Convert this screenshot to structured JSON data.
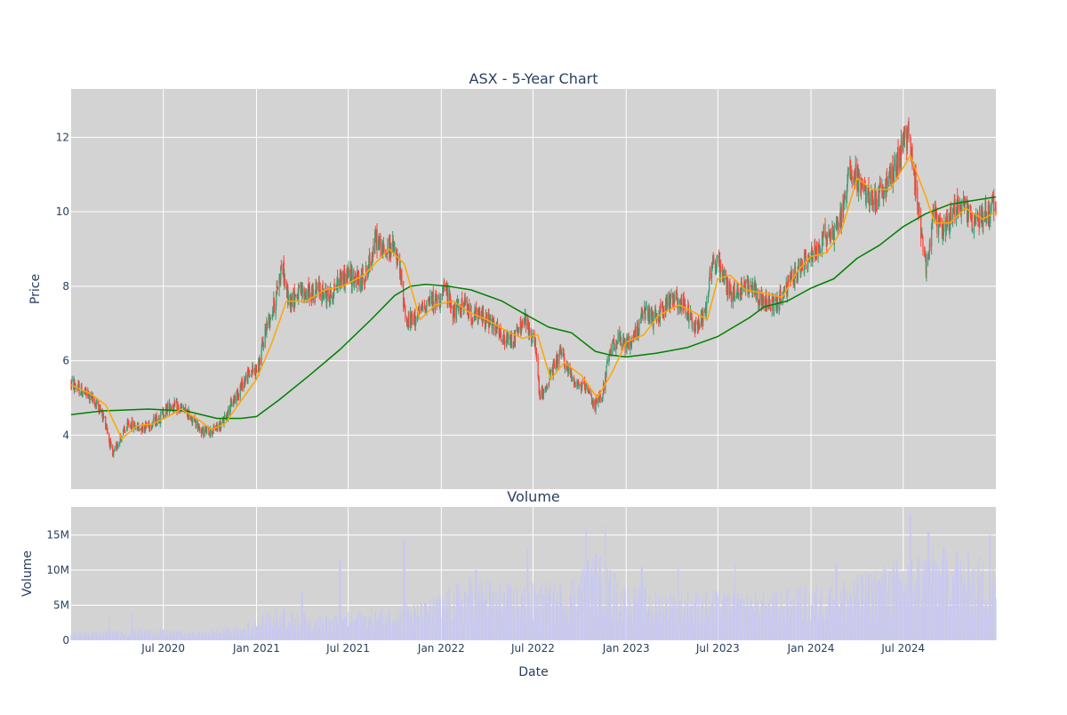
{
  "colors": {
    "increasing": "#3d9970",
    "decreasing": "#ff4136",
    "ma_short": "#ffa500",
    "ma_long": "#008000",
    "volume": "#c8c8f0",
    "plot_bg": "#d3d3d3",
    "grid": "#ffffff",
    "text": "#2a3f5f"
  },
  "chart_data": [
    {
      "type": "candlestick",
      "title": "ASX - 5-Year Chart",
      "xlabel": "",
      "ylabel": "Price",
      "xlim": [
        "2020-01-01",
        "2024-12-31"
      ],
      "ylim": [
        2.55,
        13.3
      ],
      "y_ticks": [
        4,
        6,
        8,
        10,
        12
      ],
      "grid": true,
      "x_grid_dates": [
        "2020-07-01",
        "2021-01-01",
        "2021-07-01",
        "2022-01-01",
        "2022-07-01",
        "2023-01-01",
        "2023-07-01",
        "2024-01-01",
        "2024-07-01"
      ],
      "price_path": [
        [
          "2020-01-01",
          5.4
        ],
        [
          "2020-01-20",
          5.2
        ],
        [
          "2020-02-10",
          5.0
        ],
        [
          "2020-02-25",
          4.75
        ],
        [
          "2020-03-10",
          4.3
        ],
        [
          "2020-03-23",
          3.4
        ],
        [
          "2020-04-05",
          3.9
        ],
        [
          "2020-04-25",
          4.3
        ],
        [
          "2020-05-15",
          4.2
        ],
        [
          "2020-06-05",
          4.3
        ],
        [
          "2020-06-25",
          4.5
        ],
        [
          "2020-07-15",
          4.8
        ],
        [
          "2020-08-05",
          4.7
        ],
        [
          "2020-08-25",
          4.5
        ],
        [
          "2020-09-15",
          4.1
        ],
        [
          "2020-10-05",
          4.1
        ],
        [
          "2020-10-25",
          4.3
        ],
        [
          "2020-11-15",
          4.9
        ],
        [
          "2020-12-05",
          5.4
        ],
        [
          "2020-12-20",
          5.7
        ],
        [
          "2021-01-05",
          5.8
        ],
        [
          "2021-01-20",
          6.9
        ],
        [
          "2021-02-05",
          7.5
        ],
        [
          "2021-02-20",
          8.6
        ],
        [
          "2021-03-05",
          7.6
        ],
        [
          "2021-03-25",
          7.8
        ],
        [
          "2021-04-15",
          7.8
        ],
        [
          "2021-05-05",
          7.9
        ],
        [
          "2021-05-25",
          7.7
        ],
        [
          "2021-06-15",
          8.2
        ],
        [
          "2021-07-05",
          8.3
        ],
        [
          "2021-07-25",
          8.1
        ],
        [
          "2021-08-10",
          8.5
        ],
        [
          "2021-08-25",
          9.3
        ],
        [
          "2021-09-10",
          8.9
        ],
        [
          "2021-09-25",
          9.1
        ],
        [
          "2021-10-10",
          8.5
        ],
        [
          "2021-10-25",
          7.0
        ],
        [
          "2021-11-15",
          7.2
        ],
        [
          "2021-12-05",
          7.6
        ],
        [
          "2021-12-25",
          7.6
        ],
        [
          "2022-01-10",
          7.9
        ],
        [
          "2022-01-25",
          7.3
        ],
        [
          "2022-02-15",
          7.5
        ],
        [
          "2022-03-05",
          7.2
        ],
        [
          "2022-03-25",
          7.2
        ],
        [
          "2022-04-15",
          6.9
        ],
        [
          "2022-05-05",
          6.5
        ],
        [
          "2022-05-25",
          6.6
        ],
        [
          "2022-06-15",
          7.1
        ],
        [
          "2022-07-05",
          6.4
        ],
        [
          "2022-07-15",
          5.0
        ],
        [
          "2022-08-05",
          5.6
        ],
        [
          "2022-08-25",
          6.2
        ],
        [
          "2022-09-10",
          5.7
        ],
        [
          "2022-09-25",
          5.4
        ],
        [
          "2022-10-15",
          5.2
        ],
        [
          "2022-10-30",
          4.8
        ],
        [
          "2022-11-15",
          5.1
        ],
        [
          "2022-11-25",
          5.9
        ],
        [
          "2022-12-10",
          6.6
        ],
        [
          "2022-12-30",
          6.4
        ],
        [
          "2023-01-15",
          6.6
        ],
        [
          "2023-02-05",
          7.3
        ],
        [
          "2023-02-25",
          7.1
        ],
        [
          "2023-03-15",
          7.4
        ],
        [
          "2023-04-05",
          7.7
        ],
        [
          "2023-04-25",
          7.5
        ],
        [
          "2023-05-15",
          6.9
        ],
        [
          "2023-06-05",
          7.3
        ],
        [
          "2023-06-20",
          8.7
        ],
        [
          "2023-07-10",
          8.4
        ],
        [
          "2023-07-25",
          7.8
        ],
        [
          "2023-08-15",
          7.9
        ],
        [
          "2023-09-05",
          8.1
        ],
        [
          "2023-09-25",
          7.6
        ],
        [
          "2023-10-15",
          7.5
        ],
        [
          "2023-11-05",
          7.7
        ],
        [
          "2023-11-25",
          8.2
        ],
        [
          "2023-12-15",
          8.6
        ],
        [
          "2024-01-05",
          8.8
        ],
        [
          "2024-01-25",
          9.3
        ],
        [
          "2024-02-15",
          9.5
        ],
        [
          "2024-03-05",
          10.0
        ],
        [
          "2024-03-15",
          11.2
        ],
        [
          "2024-04-05",
          10.8
        ],
        [
          "2024-04-25",
          10.3
        ],
        [
          "2024-05-15",
          10.4
        ],
        [
          "2024-06-05",
          10.9
        ],
        [
          "2024-06-25",
          11.6
        ],
        [
          "2024-07-10",
          12.1
        ],
        [
          "2024-07-20",
          11.2
        ],
        [
          "2024-08-05",
          9.6
        ],
        [
          "2024-08-15",
          8.6
        ],
        [
          "2024-08-30",
          9.9
        ],
        [
          "2024-09-15",
          9.5
        ],
        [
          "2024-10-05",
          9.9
        ],
        [
          "2024-10-25",
          10.3
        ],
        [
          "2024-11-15",
          9.7
        ],
        [
          "2024-12-05",
          9.9
        ],
        [
          "2024-12-31",
          10.2
        ]
      ],
      "ma_short_path": [
        [
          "2020-01-01",
          5.35
        ],
        [
          "2020-02-10",
          5.1
        ],
        [
          "2020-03-10",
          4.8
        ],
        [
          "2020-04-10",
          3.9
        ],
        [
          "2020-05-10",
          4.25
        ],
        [
          "2020-06-10",
          4.3
        ],
        [
          "2020-07-10",
          4.5
        ],
        [
          "2020-08-05",
          4.7
        ],
        [
          "2020-09-10",
          4.4
        ],
        [
          "2020-10-05",
          4.15
        ],
        [
          "2020-10-30",
          4.3
        ],
        [
          "2020-11-25",
          4.8
        ],
        [
          "2021-01-01",
          5.5
        ],
        [
          "2021-02-01",
          6.5
        ],
        [
          "2021-03-01",
          7.6
        ],
        [
          "2021-04-10",
          7.6
        ],
        [
          "2021-05-15",
          7.9
        ],
        [
          "2021-06-20",
          8.0
        ],
        [
          "2021-08-01",
          8.3
        ],
        [
          "2021-09-20",
          9.0
        ],
        [
          "2021-10-20",
          8.6
        ],
        [
          "2021-11-20",
          7.1
        ],
        [
          "2021-12-20",
          7.5
        ],
        [
          "2022-01-25",
          7.6
        ],
        [
          "2022-02-25",
          7.3
        ],
        [
          "2022-04-01",
          7.1
        ],
        [
          "2022-05-10",
          6.8
        ],
        [
          "2022-06-10",
          6.6
        ],
        [
          "2022-07-10",
          6.7
        ],
        [
          "2022-08-05",
          5.5
        ],
        [
          "2022-09-01",
          5.95
        ],
        [
          "2022-10-05",
          5.6
        ],
        [
          "2022-11-05",
          5.0
        ],
        [
          "2022-12-05",
          5.7
        ],
        [
          "2023-01-01",
          6.5
        ],
        [
          "2023-02-05",
          6.7
        ],
        [
          "2023-03-05",
          7.2
        ],
        [
          "2023-04-15",
          7.5
        ],
        [
          "2023-05-15",
          7.3
        ],
        [
          "2023-06-10",
          7.1
        ],
        [
          "2023-07-01",
          8.2
        ],
        [
          "2023-07-25",
          8.3
        ],
        [
          "2023-08-25",
          7.9
        ],
        [
          "2023-10-05",
          7.8
        ],
        [
          "2023-11-05",
          7.7
        ],
        [
          "2023-12-05",
          8.4
        ],
        [
          "2024-01-01",
          8.8
        ],
        [
          "2024-02-01",
          8.9
        ],
        [
          "2024-03-01",
          9.5
        ],
        [
          "2024-04-01",
          10.9
        ],
        [
          "2024-05-01",
          10.6
        ],
        [
          "2024-06-05",
          10.6
        ],
        [
          "2024-07-15",
          11.5
        ],
        [
          "2024-08-15",
          10.4
        ],
        [
          "2024-09-01",
          9.7
        ],
        [
          "2024-10-01",
          9.7
        ],
        [
          "2024-11-01",
          10.1
        ],
        [
          "2024-12-05",
          9.8
        ],
        [
          "2024-12-31",
          10.0
        ]
      ],
      "ma_long_path": [
        [
          "2020-01-01",
          4.55
        ],
        [
          "2020-03-01",
          4.65
        ],
        [
          "2020-06-01",
          4.7
        ],
        [
          "2020-08-15",
          4.65
        ],
        [
          "2020-10-15",
          4.45
        ],
        [
          "2020-12-01",
          4.45
        ],
        [
          "2021-01-01",
          4.5
        ],
        [
          "2021-02-15",
          4.95
        ],
        [
          "2021-04-15",
          5.6
        ],
        [
          "2021-06-15",
          6.3
        ],
        [
          "2021-08-15",
          7.1
        ],
        [
          "2021-10-01",
          7.75
        ],
        [
          "2021-11-01",
          8.0
        ],
        [
          "2021-12-01",
          8.05
        ],
        [
          "2022-01-15",
          8.0
        ],
        [
          "2022-03-01",
          7.9
        ],
        [
          "2022-05-01",
          7.6
        ],
        [
          "2022-06-15",
          7.25
        ],
        [
          "2022-08-01",
          6.9
        ],
        [
          "2022-09-15",
          6.75
        ],
        [
          "2022-11-01",
          6.25
        ],
        [
          "2022-12-01",
          6.15
        ],
        [
          "2023-01-01",
          6.1
        ],
        [
          "2023-03-01",
          6.2
        ],
        [
          "2023-05-01",
          6.35
        ],
        [
          "2023-07-01",
          6.65
        ],
        [
          "2023-09-01",
          7.15
        ],
        [
          "2023-10-01",
          7.45
        ],
        [
          "2023-11-15",
          7.6
        ],
        [
          "2024-01-01",
          7.95
        ],
        [
          "2024-02-15",
          8.2
        ],
        [
          "2024-04-01",
          8.75
        ],
        [
          "2024-05-15",
          9.1
        ],
        [
          "2024-07-01",
          9.6
        ],
        [
          "2024-08-15",
          9.95
        ],
        [
          "2024-10-01",
          10.2
        ],
        [
          "2024-11-15",
          10.3
        ],
        [
          "2024-12-31",
          10.4
        ]
      ]
    },
    {
      "type": "bar",
      "title": "Volume",
      "xlabel": "Date",
      "ylabel": "Volume",
      "xlim": [
        "2020-01-01",
        "2024-12-31"
      ],
      "ylim": [
        0,
        19000000
      ],
      "y_ticks": [
        0,
        5000000,
        10000000,
        15000000
      ],
      "y_tick_labels": [
        "0",
        "5M",
        "10M",
        "15M"
      ],
      "x_ticks": [
        "2020-07-01",
        "2021-01-01",
        "2021-07-01",
        "2022-01-01",
        "2022-07-01",
        "2023-01-01",
        "2023-07-01",
        "2024-01-01",
        "2024-07-01"
      ],
      "x_tick_labels": [
        "Jul 2020",
        "Jan 2021",
        "Jul 2021",
        "Jan 2022",
        "Jul 2022",
        "Jan 2023",
        "Jul 2023",
        "Jan 2024",
        "Jul 2024"
      ],
      "grid": true,
      "volume_baseline": [
        [
          "2020-01-01",
          800000
        ],
        [
          "2020-06-01",
          1200000
        ],
        [
          "2020-09-01",
          900000
        ],
        [
          "2020-12-01",
          1400000
        ],
        [
          "2021-02-01",
          3200000
        ],
        [
          "2021-05-01",
          2500000
        ],
        [
          "2021-08-01",
          3000000
        ],
        [
          "2021-12-01",
          4000000
        ],
        [
          "2022-03-01",
          6500000
        ],
        [
          "2022-06-01",
          5500000
        ],
        [
          "2022-09-01",
          6000000
        ],
        [
          "2022-11-01",
          9000000
        ],
        [
          "2023-01-01",
          5500000
        ],
        [
          "2023-04-01",
          5000000
        ],
        [
          "2023-07-01",
          5000000
        ],
        [
          "2023-10-01",
          4800000
        ],
        [
          "2024-01-01",
          5500000
        ],
        [
          "2024-04-01",
          6500000
        ],
        [
          "2024-07-01",
          8500000
        ],
        [
          "2024-09-01",
          9500000
        ],
        [
          "2024-12-31",
          8000000
        ]
      ],
      "volume_spikes": [
        [
          "2020-03-15",
          3300000
        ],
        [
          "2020-05-01",
          3800000
        ],
        [
          "2021-02-25",
          4500000
        ],
        [
          "2021-04-01",
          7000000
        ],
        [
          "2021-06-15",
          11600000
        ],
        [
          "2021-10-20",
          14300000
        ],
        [
          "2022-03-10",
          10000000
        ],
        [
          "2022-06-20",
          13000000
        ],
        [
          "2022-10-15",
          16200000
        ],
        [
          "2022-11-20",
          16500000
        ],
        [
          "2023-02-01",
          10500000
        ],
        [
          "2023-04-15",
          10300000
        ],
        [
          "2023-08-05",
          11000000
        ],
        [
          "2024-02-20",
          11000000
        ],
        [
          "2024-07-15",
          18000000
        ],
        [
          "2024-08-20",
          15500000
        ],
        [
          "2024-10-15",
          12500000
        ],
        [
          "2024-12-20",
          15000000
        ]
      ]
    }
  ]
}
